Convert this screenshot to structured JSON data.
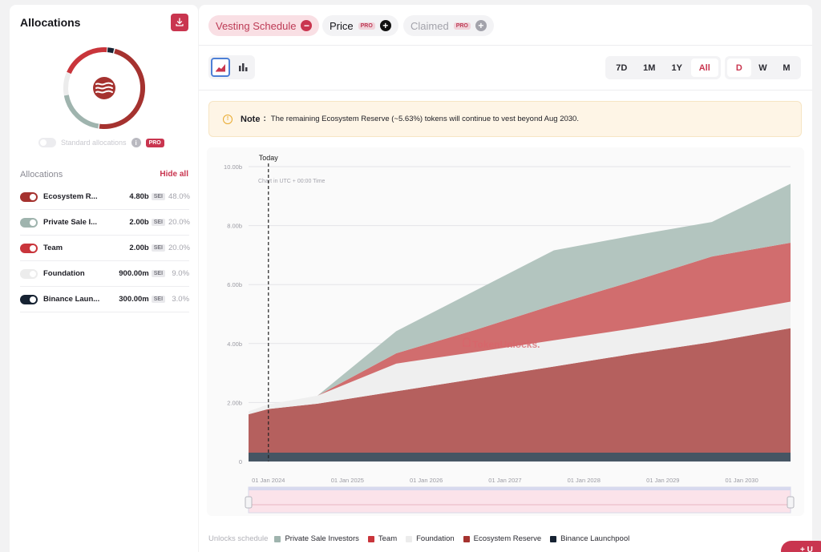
{
  "sidebar": {
    "title": "Allocations",
    "download_icon": "download-icon",
    "standard_allocations_label": "Standard allocations",
    "standard_pro": "PRO",
    "info_glyph": "i",
    "allocations_header": "Allocations",
    "hide_all": "Hide all",
    "items": [
      {
        "name": "Ecosystem R...",
        "amount": "4.80b",
        "unit": "SEI",
        "pct": "48.0%",
        "color": "#a5322f",
        "enabled": true
      },
      {
        "name": "Private Sale I...",
        "amount": "2.00b",
        "unit": "SEI",
        "pct": "20.0%",
        "color": "#9fb4ae",
        "enabled": true
      },
      {
        "name": "Team",
        "amount": "2.00b",
        "unit": "SEI",
        "pct": "20.0%",
        "color": "#c9353b",
        "enabled": true
      },
      {
        "name": "Foundation",
        "amount": "900.00m",
        "unit": "SEI",
        "pct": "9.0%",
        "color": "#ececec",
        "enabled": true
      },
      {
        "name": "Binance Laun...",
        "amount": "300.00m",
        "unit": "SEI",
        "pct": "3.0%",
        "color": "#162232",
        "enabled": true
      }
    ]
  },
  "tabs": [
    {
      "label": "Vesting Schedule",
      "icon": "minus",
      "pro": ""
    },
    {
      "label": "Price",
      "icon": "plus",
      "pro": "PRO"
    },
    {
      "label": "Claimed",
      "icon": "plus",
      "pro": "PRO"
    }
  ],
  "view_toggle": {
    "active": "area-chart-icon",
    "other": "bar-chart-icon"
  },
  "ranges": [
    "7D",
    "1M",
    "1Y",
    "All"
  ],
  "range_selected": "All",
  "granularity": [
    "D",
    "W",
    "M"
  ],
  "granularity_selected": "D",
  "note": {
    "label": "Note",
    "separator": ":",
    "text": "The remaining Ecosystem Reserve (~5.63%) tokens will continue to vest beyond Aug 2030.",
    "icon": "warning-icon"
  },
  "chart_data": {
    "type": "area",
    "stacked": true,
    "subtitle": "Chart in UTC + 00:00 Time",
    "watermark": "TokenUnlocks.",
    "today_label": "Today",
    "today_x": "2024-01-01",
    "x": [
      "2023-10-01",
      "2024-01-01",
      "2024-08-15",
      "2025-08-15",
      "2026-08-15",
      "2027-08-15",
      "2028-08-15",
      "2029-08-15",
      "2030-08-15"
    ],
    "x_tick_labels": [
      "01 Jan 2024",
      "01 Jan 2025",
      "01 Jan 2026",
      "01 Jan 2027",
      "01 Jan 2028",
      "01 Jan 2029",
      "01 Jan 2030"
    ],
    "x_ticks": [
      "2024-01-01",
      "2025-01-01",
      "2026-01-01",
      "2027-01-01",
      "2028-01-01",
      "2029-01-01",
      "2030-01-01"
    ],
    "y_ticks": [
      0,
      2.0,
      4.0,
      6.0,
      8.0,
      10.0
    ],
    "y_tick_labels": [
      "0",
      "2.00b",
      "4.00b",
      "6.00b",
      "8.00b",
      "10.00b"
    ],
    "ylim": [
      0,
      10.0
    ],
    "y_unit": "b",
    "series": [
      {
        "name": "Binance Launchpool",
        "color": "#465563",
        "values": [
          0.3,
          0.3,
          0.3,
          0.3,
          0.3,
          0.3,
          0.3,
          0.3,
          0.3
        ]
      },
      {
        "name": "Ecosystem Reserve",
        "color": "#b5605e",
        "values": [
          1.3,
          1.48,
          1.66,
          2.08,
          2.5,
          2.92,
          3.35,
          3.75,
          4.22
        ]
      },
      {
        "name": "Foundation",
        "color": "#efefef",
        "values": [
          0.1,
          0.16,
          0.27,
          0.94,
          0.91,
          0.89,
          0.86,
          0.9,
          0.9
        ]
      },
      {
        "name": "Team",
        "color": "#d16d6e",
        "values": [
          0,
          0,
          0,
          0.35,
          0.75,
          1.2,
          1.6,
          2.0,
          2.0
        ]
      },
      {
        "name": "Private Sale Investors",
        "color": "#b3c5bf",
        "values": [
          0,
          0,
          0,
          0.75,
          1.33,
          1.85,
          1.55,
          1.17,
          2.0
        ]
      }
    ],
    "legend_label": "Unlocks schedule",
    "legend": [
      {
        "name": "Private Sale Investors",
        "color": "#9fb4ae"
      },
      {
        "name": "Team",
        "color": "#c9353b"
      },
      {
        "name": "Foundation",
        "color": "#ececec"
      },
      {
        "name": "Ecosystem Reserve",
        "color": "#a5322f"
      },
      {
        "name": "Binance Launchpool",
        "color": "#162232"
      }
    ]
  },
  "corner_button": "+ U"
}
